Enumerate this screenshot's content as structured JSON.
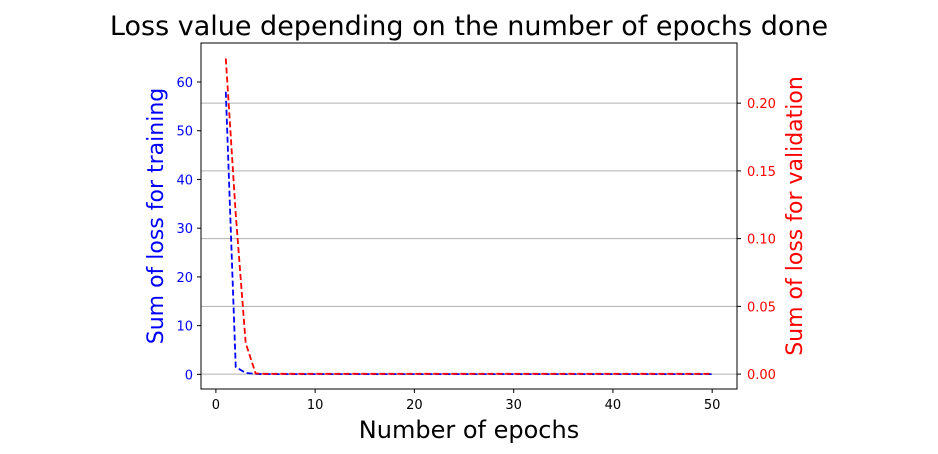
{
  "chart_data": {
    "type": "line",
    "title": "Loss value depending on the number of epochs done",
    "xlabel": "Number of epochs",
    "ylabel_left": "Sum of loss for training",
    "ylabel_right": "Sum of loss for validation",
    "xlim": [
      -1.5,
      52.5
    ],
    "ylim_left": [
      -3.0,
      68.0
    ],
    "ylim_right": [
      -0.011,
      0.2444
    ],
    "x_ticks": [
      0,
      10,
      20,
      30,
      40,
      50
    ],
    "y_left_ticks": [
      0,
      10,
      20,
      30,
      40,
      50,
      60
    ],
    "y_right_ticks": [
      0.0,
      0.05,
      0.1,
      0.15,
      0.2
    ],
    "x_tick_labels": [
      "0",
      "10",
      "20",
      "30",
      "40",
      "50"
    ],
    "y_left_tick_labels": [
      "0",
      "10",
      "20",
      "30",
      "40",
      "50",
      "60"
    ],
    "y_right_tick_labels": [
      "0.00",
      "0.05",
      "0.10",
      "0.15",
      "0.20"
    ],
    "grid": "horizontal, aligned to right axis ticks",
    "colors": {
      "left_axis": "#0000ff",
      "right_axis": "#ff0000",
      "grid": "#b0b0b0"
    },
    "series": [
      {
        "axis": "left",
        "color": "#0000ff",
        "linestyle": "dashed",
        "x": [
          1,
          2,
          3,
          4,
          5,
          6,
          7,
          8,
          9,
          10,
          11,
          12,
          13,
          14,
          15,
          16,
          17,
          18,
          19,
          20,
          21,
          22,
          23,
          24,
          25,
          26,
          27,
          28,
          29,
          30,
          31,
          32,
          33,
          34,
          35,
          36,
          37,
          38,
          39,
          40,
          41,
          42,
          43,
          44,
          45,
          46,
          47,
          48,
          49,
          50
        ],
        "y": [
          58.0,
          1.5,
          0.3,
          0.1,
          0.05,
          0.05,
          0.05,
          0.05,
          0.05,
          0.05,
          0.05,
          0.05,
          0.05,
          0.05,
          0.05,
          0.05,
          0.05,
          0.05,
          0.05,
          0.05,
          0.05,
          0.05,
          0.05,
          0.05,
          0.05,
          0.05,
          0.05,
          0.05,
          0.05,
          0.05,
          0.05,
          0.05,
          0.05,
          0.05,
          0.05,
          0.05,
          0.05,
          0.05,
          0.05,
          0.05,
          0.05,
          0.05,
          0.05,
          0.05,
          0.05,
          0.05,
          0.05,
          0.05,
          0.05,
          0.05
        ]
      },
      {
        "axis": "right",
        "color": "#ff0000",
        "linestyle": "dashed",
        "x": [
          1,
          2,
          3,
          4,
          5,
          6,
          7,
          8,
          9,
          10,
          11,
          12,
          13,
          14,
          15,
          16,
          17,
          18,
          19,
          20,
          21,
          22,
          23,
          24,
          25,
          26,
          27,
          28,
          29,
          30,
          31,
          32,
          33,
          34,
          35,
          36,
          37,
          38,
          39,
          40,
          41,
          42,
          43,
          44,
          45,
          46,
          47,
          48,
          49,
          50
        ],
        "y": [
          0.233,
          0.118,
          0.023,
          0.0005,
          0.0002,
          0.0002,
          0.0002,
          0.0002,
          0.0002,
          0.0002,
          0.0002,
          0.0002,
          0.0002,
          0.0002,
          0.0002,
          0.0002,
          0.0002,
          0.0002,
          0.0002,
          0.0002,
          0.0002,
          0.0002,
          0.0002,
          0.0002,
          0.0002,
          0.0002,
          0.0002,
          0.0002,
          0.0002,
          0.0002,
          0.0002,
          0.0002,
          0.0002,
          0.0002,
          0.0002,
          0.0002,
          0.0002,
          0.0002,
          0.0002,
          0.0002,
          0.0002,
          0.0002,
          0.0002,
          0.0002,
          0.0002,
          0.0002,
          0.0002,
          0.0002,
          0.0002,
          0.0002
        ]
      }
    ]
  }
}
